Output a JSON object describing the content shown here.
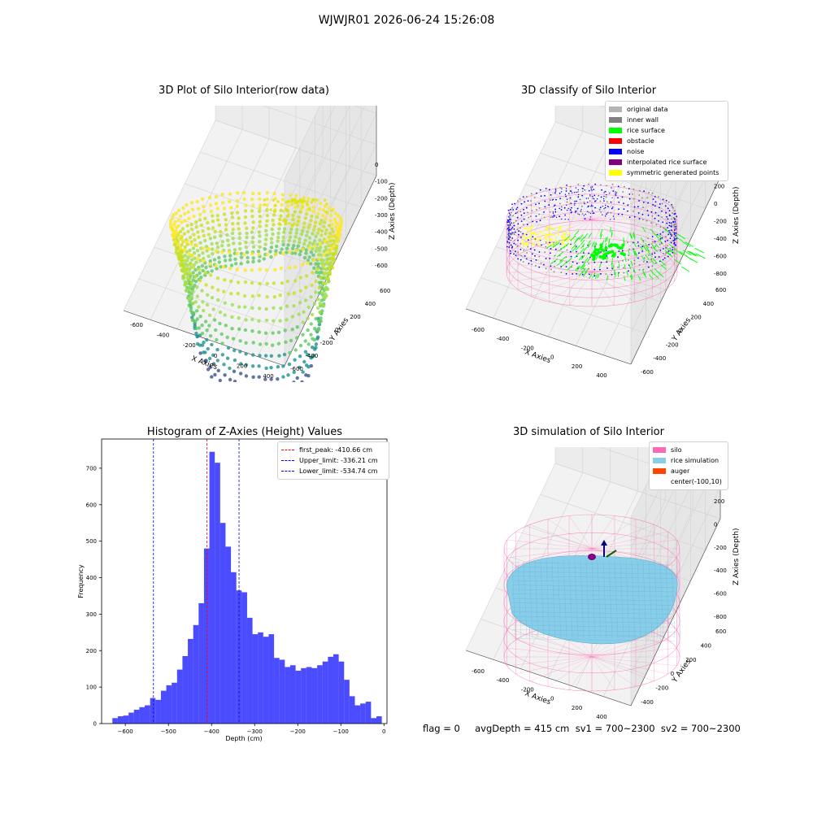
{
  "suptitle": "WJWJR01 2026-06-24 15:26:08",
  "chart_data": [
    {
      "type": "scatter",
      "projection": "3d",
      "title": "3D Plot of Silo Interior(row data)",
      "xlabel": "X Axies",
      "ylabel": "Y Axies",
      "zlabel": "Z Axies (Depth)",
      "x_ticks": [
        "-600",
        "-400",
        "-200",
        "0",
        "200",
        "400"
      ],
      "y_ticks": [
        "-600",
        "-400",
        "-200",
        "0",
        "200",
        "400",
        "600"
      ],
      "z_ticks": [
        "-600",
        "-500",
        "-400",
        "-300",
        "-200",
        "-100",
        "0"
      ],
      "colormap": "viridis"
    },
    {
      "type": "scatter",
      "projection": "3d",
      "title": "3D classify of Silo Interior",
      "xlabel": "X Axies",
      "ylabel": "Y Axies",
      "zlabel": "Z Axies (Depth)",
      "x_ticks": [
        "-600",
        "-400",
        "-200",
        "0",
        "200",
        "400"
      ],
      "y_ticks": [
        "-600",
        "-400",
        "-200",
        "0",
        "200",
        "400",
        "600"
      ],
      "z_ticks": [
        "-800",
        "-600",
        "-400",
        "-200",
        "0",
        "200",
        "400"
      ],
      "legend": [
        {
          "label": "original data",
          "color": "#b4b4b4"
        },
        {
          "label": "inner wall",
          "color": "#808080"
        },
        {
          "label": "rice surface",
          "color": "#00ff00"
        },
        {
          "label": "obstacle",
          "color": "#ff0000"
        },
        {
          "label": "noise",
          "color": "#0000ff"
        },
        {
          "label": "interpolated rice surface",
          "color": "#800080"
        },
        {
          "label": "symmetric generated points",
          "color": "#ffff00"
        }
      ]
    },
    {
      "type": "bar",
      "title": "Histogram of Z-Axies (Height) Values",
      "xlabel": "Depth (cm)",
      "ylabel": "Frequency",
      "xlim": [
        -655,
        7
      ],
      "ylim": [
        0,
        780
      ],
      "x_ticks": [
        -600,
        -500,
        -400,
        -300,
        -200,
        -100,
        0
      ],
      "y_ticks": [
        0,
        100,
        200,
        300,
        400,
        500,
        600,
        700
      ],
      "bin_start": -630,
      "bin_width": 12.5,
      "values": [
        15,
        20,
        22,
        30,
        38,
        45,
        50,
        70,
        65,
        90,
        105,
        112,
        148,
        185,
        232,
        270,
        330,
        480,
        745,
        715,
        550,
        485,
        415,
        365,
        360,
        290,
        245,
        250,
        238,
        245,
        180,
        175,
        155,
        160,
        145,
        152,
        155,
        152,
        160,
        170,
        183,
        190,
        170,
        120,
        75,
        50,
        55,
        60,
        15,
        20
      ],
      "bar_color": "#0000ff",
      "lines": [
        {
          "label": "first_peak: -410.66 cm",
          "x": -410.66,
          "color": "#ff0000"
        },
        {
          "label": "Upper_limit: -336.21 cm",
          "x": -336.21,
          "color": "#0000ff"
        },
        {
          "label": "Lower_limit: -534.74 cm",
          "x": -534.74,
          "color": "#0000ff"
        }
      ]
    },
    {
      "type": "surface",
      "projection": "3d",
      "title": "3D simulation of Silo Interior",
      "xlabel": "X Axies",
      "ylabel": "Y Axies",
      "zlabel": "Z Axies (Depth)",
      "x_ticks": [
        "-600",
        "-400",
        "-200",
        "0",
        "200",
        "400"
      ],
      "y_ticks": [
        "-400",
        "-200",
        "0",
        "200",
        "400",
        "600"
      ],
      "z_ticks": [
        "-800",
        "-600",
        "-400",
        "-200",
        "0",
        "200"
      ],
      "legend": [
        {
          "label": "silo",
          "color": "#ff69b4"
        },
        {
          "label": "rice simulation",
          "color": "#87ceeb"
        },
        {
          "label": "auger",
          "color": "#ff4500"
        },
        {
          "label": "center(-100,10)",
          "color": ""
        }
      ]
    }
  ],
  "footer": "flag = 0     avgDepth = 415 cm  sv1 = 700~2300  sv2 = 700~2300"
}
